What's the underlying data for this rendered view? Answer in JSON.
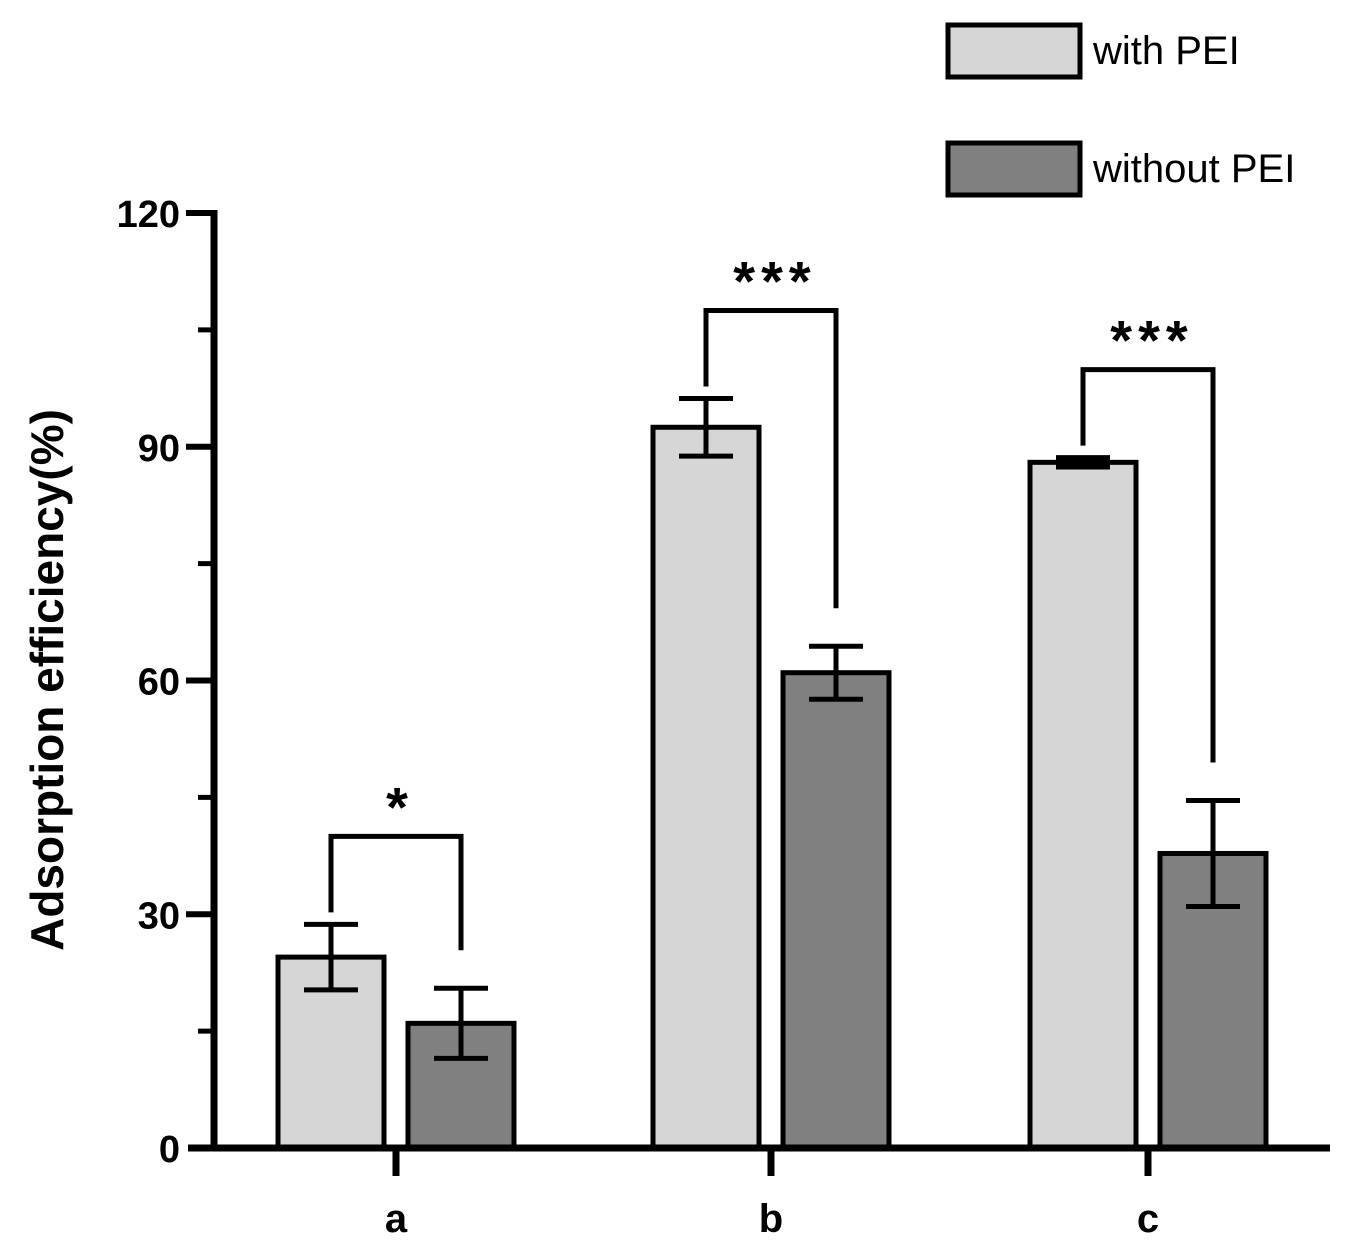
{
  "chart_data": {
    "type": "bar",
    "title": "",
    "xlabel": "",
    "ylabel": "Adsorption efficiency(%)",
    "ylim": [
      0,
      120
    ],
    "yticks": [
      0,
      30,
      60,
      90,
      120
    ],
    "ytick_labels": [
      "0",
      "30",
      "60",
      "90",
      "120"
    ],
    "categories": [
      "a",
      "b",
      "c"
    ],
    "legend_position": "top-right",
    "series": [
      {
        "name": "with PEI",
        "color": "#d6d6d6",
        "values": [
          24.5,
          92.5,
          88.0
        ],
        "errors": [
          4.2,
          3.7,
          0.6
        ]
      },
      {
        "name": "without PEI",
        "color": "#808080",
        "values": [
          16.0,
          61.0,
          37.8
        ],
        "errors": [
          4.5,
          3.4,
          6.8
        ]
      }
    ],
    "significance": [
      {
        "category": "a",
        "label": "*"
      },
      {
        "category": "b",
        "label": "***"
      },
      {
        "category": "c",
        "label": "***"
      }
    ]
  }
}
